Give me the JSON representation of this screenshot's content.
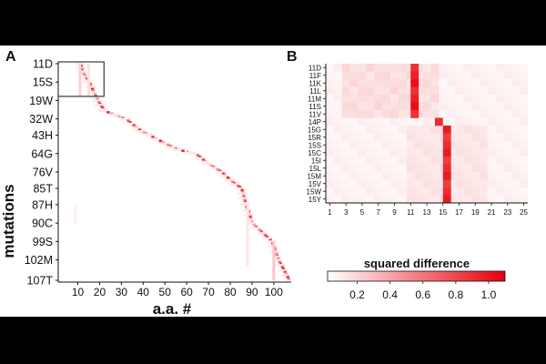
{
  "panel_a": {
    "label": "A",
    "y_label": "mutations",
    "x_label": "a.a. #"
  },
  "panel_b": {
    "label": "B"
  },
  "colorbar": {
    "label": "squared difference",
    "ticks": [
      "0.2",
      "0.4",
      "0.6",
      "0.8",
      "1.0"
    ],
    "color_low": "#ffffff",
    "color_high": "#e8000b"
  },
  "chart_data": [
    {
      "type": "heatmap",
      "panel": "A",
      "xlabel": "a.a. #",
      "ylabel": "mutations",
      "xlim": [
        1,
        108
      ],
      "row_count": 107,
      "x_ticks": [
        10,
        20,
        30,
        40,
        50,
        60,
        70,
        80,
        90,
        100
      ],
      "y_tick_labels": [
        "11D",
        "15S",
        "19W",
        "32W",
        "43H",
        "64G",
        "76V",
        "85T",
        "87H",
        "90C",
        "99S",
        "102M",
        "107T"
      ],
      "y_tick_rows": [
        1,
        10,
        19,
        28,
        36,
        45,
        54,
        62,
        70,
        79,
        88,
        97,
        107
      ],
      "zoom_box": {
        "x_range": [
          1,
          22
        ],
        "rows": [
          1,
          17
        ]
      },
      "diagonal_trace": [
        [
          11,
          1
        ],
        [
          12,
          5
        ],
        [
          15,
          10
        ],
        [
          19,
          19
        ],
        [
          22,
          24
        ],
        [
          32,
          28
        ],
        [
          39,
          34
        ],
        [
          43,
          36
        ],
        [
          50,
          40
        ],
        [
          56,
          43
        ],
        [
          64,
          45
        ],
        [
          70,
          50
        ],
        [
          76,
          54
        ],
        [
          80,
          58
        ],
        [
          85,
          62
        ],
        [
          87,
          70
        ],
        [
          90,
          79
        ],
        [
          99,
          88
        ],
        [
          102,
          97
        ],
        [
          107,
          107
        ]
      ]
    },
    {
      "type": "heatmap",
      "panel": "B",
      "x_tick_labels": [
        "1",
        "3",
        "5",
        "7",
        "9",
        "11",
        "13",
        "15",
        "17",
        "19",
        "21",
        "23",
        "25"
      ],
      "x_ticks": [
        1,
        3,
        5,
        7,
        9,
        11,
        13,
        15,
        17,
        19,
        21,
        23,
        25
      ],
      "xlim": [
        0,
        25
      ],
      "rows": [
        "11D",
        "11F",
        "11K",
        "11L",
        "11M",
        "11S",
        "11V",
        "14P",
        "15G",
        "15R",
        "15S",
        "15C",
        "15I",
        "15L",
        "15M",
        "15V",
        "15W",
        "15Y"
      ],
      "hot_columns": [
        {
          "rows": [
            0,
            6
          ],
          "x": 11,
          "value": 0.95
        },
        {
          "rows": [
            7,
            7
          ],
          "x": 14,
          "value": 0.9
        },
        {
          "rows": [
            8,
            17
          ],
          "x": 15,
          "value": 0.9
        }
      ]
    }
  ]
}
